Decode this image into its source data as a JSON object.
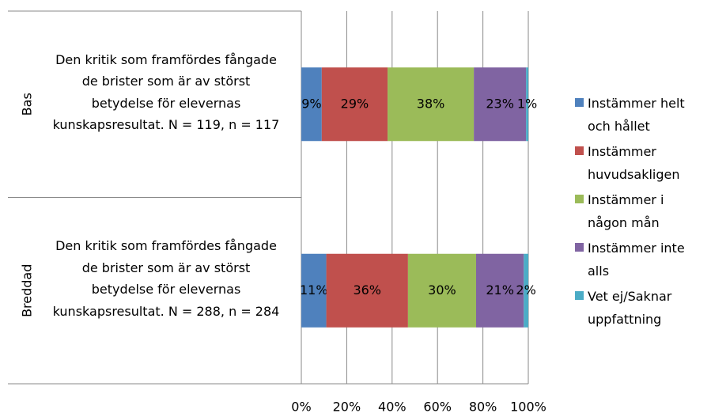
{
  "chart_data": {
    "type": "bar",
    "orientation": "horizontal",
    "stacked": true,
    "groups": [
      "Bas",
      "Breddad"
    ],
    "categories": [
      "Den kritik som framfördes fångade de brister som är av störst betydelse för elevernas kunskapsresultat. N = 119, n = 117",
      "Den kritik som framfördes fångade de brister som är av störst betydelse för elevernas kunskapsresultat. N = 288, n = 284"
    ],
    "series": [
      {
        "name": "Instämmer helt och hållet",
        "color": "#4F81BD",
        "values": [
          9,
          11
        ],
        "value_labels": [
          "9%",
          "11%"
        ]
      },
      {
        "name": "Instämmer huvudsakligen",
        "color": "#C0504D",
        "values": [
          29,
          36
        ],
        "value_labels": [
          "29%",
          "36%"
        ]
      },
      {
        "name": "Instämmer i någon mån",
        "color": "#9BBB59",
        "values": [
          38,
          30
        ],
        "value_labels": [
          "38%",
          "30%"
        ]
      },
      {
        "name": "Instämmer inte alls",
        "color": "#8064A2",
        "values": [
          23,
          21
        ],
        "value_labels": [
          "23%",
          "21%"
        ]
      },
      {
        "name": "Vet ej/Saknar uppfattning",
        "color": "#4BACC6",
        "values": [
          1,
          2
        ],
        "value_labels": [
          "1%",
          "2%"
        ]
      }
    ],
    "xlim": [
      0,
      100
    ],
    "xticks": [
      {
        "value": 0,
        "label": "0%"
      },
      {
        "value": 20,
        "label": "20%"
      },
      {
        "value": 40,
        "label": "40%"
      },
      {
        "value": 60,
        "label": "60%"
      },
      {
        "value": 80,
        "label": "80%"
      },
      {
        "value": 100,
        "label": "100%"
      }
    ],
    "grid": true,
    "legend": "right"
  }
}
